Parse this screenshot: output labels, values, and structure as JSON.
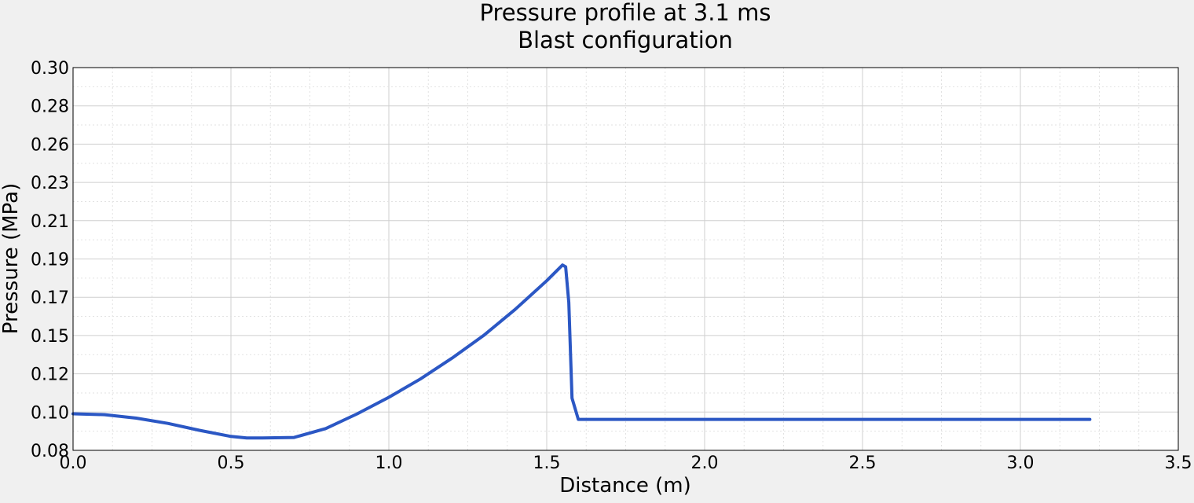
{
  "chart_data": {
    "type": "line",
    "title": "Pressure profile at 3.1 ms",
    "subtitle": "Blast configuration",
    "xlabel": "Distance (m)",
    "ylabel": "Pressure (MPa)",
    "xlim": [
      0.0,
      3.5
    ],
    "ylim": [
      0.08,
      0.3
    ],
    "x_ticks": [
      "0.0",
      "0.5",
      "1.0",
      "1.5",
      "2.0",
      "2.5",
      "3.0",
      "3.5"
    ],
    "y_ticks": [
      "0.08",
      "0.10",
      "0.12",
      "0.15",
      "0.17",
      "0.19",
      "0.21",
      "0.23",
      "0.26",
      "0.28",
      "0.30"
    ],
    "grid": true,
    "colors": {
      "line": "#2b57c4",
      "background": "#f0f0f0",
      "plot_bg": "#ffffff",
      "grid": "#cfcfcf"
    },
    "series": [
      {
        "x": [
          0.0,
          0.1,
          0.2,
          0.3,
          0.4,
          0.5,
          0.55,
          0.6,
          0.7,
          0.8,
          0.9,
          1.0,
          1.1,
          1.2,
          1.3,
          1.4,
          1.5,
          1.55,
          1.56,
          1.57,
          1.58,
          1.6,
          2.0,
          2.5,
          3.0,
          3.22
        ],
        "y": [
          0.101,
          0.1005,
          0.0985,
          0.0955,
          0.0915,
          0.088,
          0.0871,
          0.0871,
          0.0874,
          0.0925,
          0.101,
          0.1105,
          0.121,
          0.133,
          0.146,
          0.161,
          0.1775,
          0.1865,
          0.1855,
          0.165,
          0.11,
          0.0978,
          0.0978,
          0.0978,
          0.0978,
          0.0978
        ]
      }
    ]
  }
}
